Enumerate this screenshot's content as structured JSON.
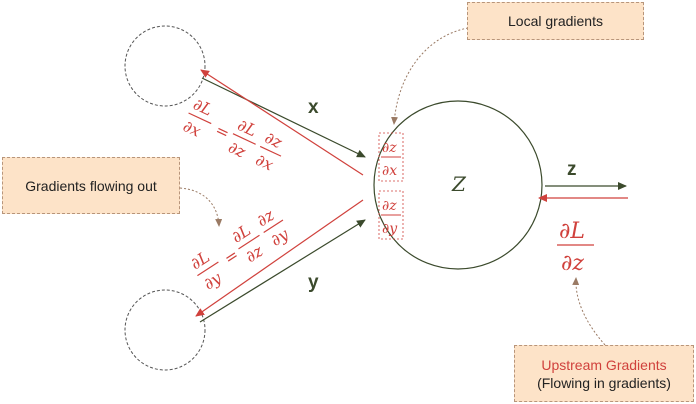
{
  "colors": {
    "forward": "#3b4a2c",
    "backward": "#d0413c",
    "callout_fill": "#fde3c8",
    "callout_border": "#b8957a"
  },
  "node": {
    "label": "Z"
  },
  "edges": {
    "x_label": "x",
    "y_label": "y",
    "z_label": "z"
  },
  "local_gradients": {
    "dzdx": {
      "num": "∂z",
      "den": "∂x"
    },
    "dzdy": {
      "num": "∂z",
      "den": "∂y"
    }
  },
  "gradient_out_x": {
    "lhs_num": "∂L",
    "lhs_den": "∂x",
    "eq": "=",
    "r1_num": "∂L",
    "r1_den": "∂z",
    "r2_num": "∂z",
    "r2_den": "∂x"
  },
  "gradient_out_y": {
    "lhs_num": "∂L",
    "lhs_den": "∂y",
    "eq": "=",
    "r1_num": "∂L",
    "r1_den": "∂z",
    "r2_num": "∂z",
    "r2_den": "∂y"
  },
  "upstream": {
    "num": "∂L",
    "den": "∂z"
  },
  "callouts": {
    "local": "Local gradients",
    "flowing_out": "Gradients flowing out",
    "upstream_line1": "Upstream Gradients",
    "upstream_line2": "(Flowing in gradients)"
  }
}
